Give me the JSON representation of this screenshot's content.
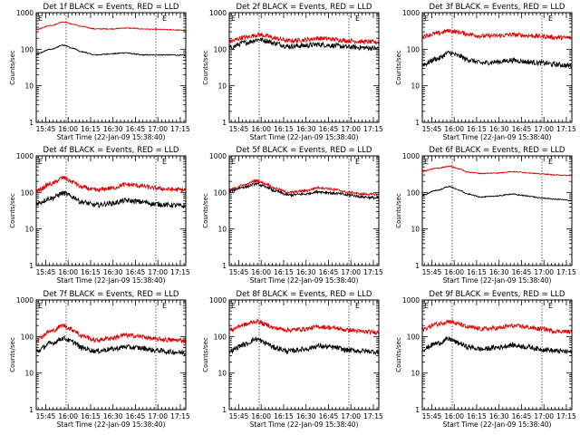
{
  "page": {
    "common_xlabel": "Start Time (22-Jan-09 15:38:40)",
    "common_ylabel": "Counts/sec",
    "colors": {
      "events": "#000000",
      "lld": "#e00000",
      "axes": "#000000",
      "background": "#ffffff"
    },
    "corner_markers": [
      "E",
      "E"
    ]
  },
  "chart_data": [
    {
      "type": "line",
      "title": "Det 1f BLACK = Events, RED = LLD",
      "xlabel": "Start Time (22-Jan-09 15:38:40)",
      "ylabel": "Counts/sec",
      "x_tick_labels": [
        "15:45",
        "16:00",
        "16:15",
        "16:30",
        "16:45",
        "17:00",
        "17:15"
      ],
      "y_tick_labels": [
        "1",
        "10",
        "100",
        "1000"
      ],
      "y_scale": "log",
      "ylim": [
        1,
        1000
      ],
      "xlim_minutes": [
        0,
        100
      ],
      "vlines_minutes": [
        20,
        80
      ],
      "noise": "low",
      "x": [
        0,
        10,
        18,
        25,
        30,
        40,
        50,
        60,
        65,
        70,
        80,
        90,
        100
      ],
      "series": [
        {
          "name": "Events",
          "color": "#000000",
          "values": [
            75,
            100,
            130,
            105,
            85,
            70,
            75,
            80,
            75,
            70,
            70,
            70,
            68
          ]
        },
        {
          "name": "LLD",
          "color": "#e00000",
          "values": [
            350,
            450,
            560,
            480,
            420,
            360,
            360,
            380,
            375,
            360,
            350,
            340,
            330
          ]
        }
      ]
    },
    {
      "type": "line",
      "title": "Det 2f BLACK = Events, RED = LLD",
      "xlabel": "Start Time (22-Jan-09 15:38:40)",
      "ylabel": "Counts/sec",
      "x_tick_labels": [
        "15:45",
        "16:00",
        "16:15",
        "16:30",
        "16:45",
        "17:00",
        "17:15"
      ],
      "y_tick_labels": [
        "1",
        "10",
        "100",
        "1000"
      ],
      "y_scale": "log",
      "ylim": [
        1,
        1000
      ],
      "xlim_minutes": [
        0,
        100
      ],
      "vlines_minutes": [
        20,
        80
      ],
      "noise": "high",
      "x": [
        0,
        10,
        20,
        25,
        30,
        40,
        50,
        60,
        65,
        70,
        80,
        90,
        100
      ],
      "series": [
        {
          "name": "Events",
          "color": "#000000",
          "values": [
            110,
            150,
            185,
            170,
            145,
            120,
            125,
            135,
            130,
            125,
            115,
            110,
            105
          ]
        },
        {
          "name": "LLD",
          "color": "#e00000",
          "values": [
            165,
            210,
            250,
            230,
            200,
            170,
            180,
            200,
            195,
            185,
            170,
            160,
            155
          ]
        }
      ]
    },
    {
      "type": "line",
      "title": "Det 3f BLACK = Events, RED = LLD",
      "xlabel": "Start Time (22-Jan-09 15:38:40)",
      "ylabel": "Counts/sec",
      "x_tick_labels": [
        "15:45",
        "16:00",
        "16:15",
        "16:30",
        "16:45",
        "17:00",
        "17:15"
      ],
      "y_tick_labels": [
        "1",
        "10",
        "100",
        "1000"
      ],
      "y_scale": "log",
      "ylim": [
        1,
        1000
      ],
      "xlim_minutes": [
        0,
        100
      ],
      "vlines_minutes": [
        20,
        80
      ],
      "noise": "high",
      "x": [
        0,
        10,
        18,
        25,
        30,
        40,
        50,
        60,
        65,
        70,
        80,
        90,
        100
      ],
      "series": [
        {
          "name": "Events",
          "color": "#000000",
          "values": [
            38,
            55,
            80,
            65,
            52,
            42,
            45,
            50,
            48,
            45,
            42,
            38,
            35
          ]
        },
        {
          "name": "LLD",
          "color": "#e00000",
          "values": [
            230,
            270,
            320,
            290,
            260,
            230,
            235,
            250,
            245,
            235,
            225,
            210,
            205
          ]
        }
      ]
    },
    {
      "type": "line",
      "title": "Det 4f BLACK = Events, RED = LLD",
      "xlabel": "Start Time (22-Jan-09 15:38:40)",
      "ylabel": "Counts/sec",
      "x_tick_labels": [
        "15:45",
        "16:00",
        "16:15",
        "16:30",
        "16:45",
        "17:00",
        "17:15"
      ],
      "y_tick_labels": [
        "1",
        "10",
        "100",
        "1000"
      ],
      "y_scale": "log",
      "ylim": [
        1,
        1000
      ],
      "xlim_minutes": [
        0,
        100
      ],
      "vlines_minutes": [
        20,
        80
      ],
      "noise": "high",
      "x": [
        0,
        10,
        18,
        25,
        30,
        40,
        50,
        60,
        65,
        70,
        80,
        90,
        100
      ],
      "series": [
        {
          "name": "Events",
          "color": "#000000",
          "values": [
            50,
            70,
            95,
            75,
            55,
            45,
            50,
            60,
            58,
            55,
            48,
            45,
            42
          ]
        },
        {
          "name": "LLD",
          "color": "#e00000",
          "values": [
            110,
            170,
            250,
            190,
            140,
            115,
            130,
            165,
            160,
            150,
            130,
            120,
            118
          ]
        }
      ]
    },
    {
      "type": "line",
      "title": "Det 5f BLACK = Events, RED = LLD",
      "xlabel": "Start Time (22-Jan-09 15:38:40)",
      "ylabel": "Counts/sec",
      "x_tick_labels": [
        "15:45",
        "16:00",
        "16:15",
        "16:30",
        "16:45",
        "17:00",
        "17:15"
      ],
      "y_tick_labels": [
        "1",
        "10",
        "100",
        "1000"
      ],
      "y_scale": "log",
      "ylim": [
        1,
        1000
      ],
      "xlim_minutes": [
        0,
        100
      ],
      "vlines_minutes": [
        20,
        80
      ],
      "noise": "medium",
      "x": [
        0,
        10,
        18,
        25,
        30,
        40,
        50,
        60,
        65,
        70,
        80,
        90,
        100
      ],
      "series": [
        {
          "name": "Events",
          "color": "#000000",
          "values": [
            110,
            140,
            170,
            140,
            110,
            85,
            90,
            105,
            100,
            95,
            85,
            75,
            70
          ]
        },
        {
          "name": "LLD",
          "color": "#e00000",
          "values": [
            120,
            160,
            210,
            170,
            130,
            100,
            110,
            135,
            130,
            120,
            100,
            90,
            88
          ]
        }
      ]
    },
    {
      "type": "line",
      "title": "Det 6f BLACK = Events, RED = LLD",
      "xlabel": "Start Time (22-Jan-09 15:38:40)",
      "ylabel": "Counts/sec",
      "x_tick_labels": [
        "15:45",
        "16:00",
        "16:15",
        "16:30",
        "16:45",
        "17:00",
        "17:15"
      ],
      "y_tick_labels": [
        "1",
        "10",
        "100",
        "1000"
      ],
      "y_scale": "log",
      "ylim": [
        1,
        1000
      ],
      "xlim_minutes": [
        0,
        100
      ],
      "vlines_minutes": [
        20,
        80
      ],
      "noise": "low",
      "x": [
        0,
        10,
        18,
        25,
        30,
        40,
        50,
        60,
        65,
        70,
        80,
        90,
        100
      ],
      "series": [
        {
          "name": "Events",
          "color": "#000000",
          "values": [
            85,
            115,
            145,
            115,
            90,
            75,
            80,
            90,
            85,
            80,
            70,
            65,
            60
          ]
        },
        {
          "name": "LLD",
          "color": "#e00000",
          "values": [
            380,
            460,
            520,
            440,
            360,
            330,
            340,
            370,
            360,
            345,
            320,
            300,
            290
          ]
        }
      ]
    },
    {
      "type": "line",
      "title": "Det 7f BLACK = Events, RED = LLD",
      "xlabel": "Start Time (22-Jan-09 15:38:40)",
      "ylabel": "Counts/sec",
      "x_tick_labels": [
        "15:45",
        "16:00",
        "16:15",
        "16:30",
        "16:45",
        "17:00",
        "17:15"
      ],
      "y_tick_labels": [
        "1",
        "10",
        "100",
        "1000"
      ],
      "y_scale": "log",
      "ylim": [
        1,
        1000
      ],
      "xlim_minutes": [
        0,
        100
      ],
      "vlines_minutes": [
        20,
        80
      ],
      "noise": "high",
      "x": [
        0,
        10,
        18,
        25,
        30,
        40,
        50,
        60,
        65,
        70,
        80,
        90,
        100
      ],
      "series": [
        {
          "name": "Events",
          "color": "#000000",
          "values": [
            40,
            65,
            90,
            70,
            50,
            40,
            45,
            52,
            50,
            48,
            42,
            38,
            36
          ]
        },
        {
          "name": "LLD",
          "color": "#e00000",
          "values": [
            85,
            140,
            200,
            150,
            105,
            80,
            90,
            110,
            105,
            100,
            85,
            80,
            78
          ]
        }
      ]
    },
    {
      "type": "line",
      "title": "Det 8f BLACK = Events, RED = LLD",
      "xlabel": "Start Time (22-Jan-09 15:38:40)",
      "ylabel": "Counts/sec",
      "x_tick_labels": [
        "15:45",
        "16:00",
        "16:15",
        "16:30",
        "16:45",
        "17:00",
        "17:15"
      ],
      "y_tick_labels": [
        "1",
        "10",
        "100",
        "1000"
      ],
      "y_scale": "log",
      "ylim": [
        1,
        1000
      ],
      "xlim_minutes": [
        0,
        100
      ],
      "vlines_minutes": [
        20,
        80
      ],
      "noise": "high",
      "x": [
        0,
        10,
        18,
        25,
        30,
        40,
        50,
        60,
        65,
        70,
        80,
        90,
        100
      ],
      "series": [
        {
          "name": "Events",
          "color": "#000000",
          "values": [
            40,
            60,
            85,
            65,
            50,
            40,
            45,
            55,
            52,
            50,
            42,
            40,
            38
          ]
        },
        {
          "name": "LLD",
          "color": "#e00000",
          "values": [
            150,
            210,
            260,
            210,
            170,
            150,
            160,
            185,
            180,
            170,
            150,
            135,
            130
          ]
        }
      ]
    },
    {
      "type": "line",
      "title": "Det 9f BLACK = Events, RED = LLD",
      "xlabel": "Start Time (22-Jan-09 15:38:40)",
      "ylabel": "Counts/sec",
      "x_tick_labels": [
        "15:45",
        "16:00",
        "16:15",
        "16:30",
        "16:45",
        "17:00",
        "17:15"
      ],
      "y_tick_labels": [
        "1",
        "10",
        "100",
        "1000"
      ],
      "y_scale": "log",
      "ylim": [
        1,
        1000
      ],
      "xlim_minutes": [
        0,
        100
      ],
      "vlines_minutes": [
        20,
        80
      ],
      "noise": "high",
      "x": [
        0,
        10,
        18,
        25,
        30,
        40,
        50,
        60,
        65,
        70,
        80,
        90,
        100
      ],
      "series": [
        {
          "name": "Events",
          "color": "#000000",
          "values": [
            45,
            65,
            85,
            65,
            52,
            45,
            50,
            58,
            55,
            52,
            45,
            40,
            38
          ]
        },
        {
          "name": "LLD",
          "color": "#e00000",
          "values": [
            160,
            220,
            260,
            215,
            180,
            160,
            170,
            195,
            190,
            180,
            160,
            140,
            135
          ]
        }
      ]
    }
  ]
}
